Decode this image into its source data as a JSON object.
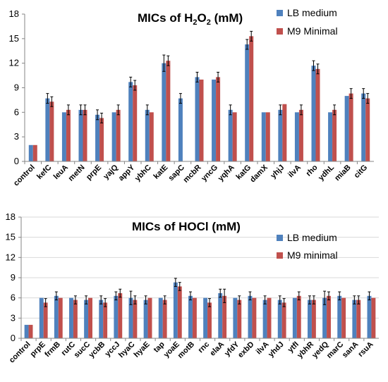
{
  "colors": {
    "lb": "#4f81bd",
    "m9": "#c0504d"
  },
  "chart_data": [
    {
      "type": "bar",
      "title_prefix": "MICs of H",
      "title_sub1": "2",
      "title_mid": "O",
      "title_sub2": "2",
      "title_suffix": " (mM)",
      "ylim": [
        0,
        18
      ],
      "yticks": [
        "0",
        "3",
        "6",
        "9",
        "12",
        "15",
        "18"
      ],
      "grid": false,
      "legend_position": "top-right",
      "categories": [
        "control",
        "kefC",
        "leuA",
        "metN",
        "prpE",
        "yajQ",
        "appY",
        "ybhC",
        "katE",
        "sapC",
        "mcbR",
        "yncG",
        "yqhA",
        "katG",
        "damX",
        "yhjJ",
        "ilvA",
        "rho",
        "ydhL",
        "miaB",
        "citG"
      ],
      "series": [
        {
          "name": "LB medium",
          "values": [
            2,
            7.7,
            6,
            6.3,
            5.7,
            6,
            9.7,
            6.3,
            12,
            7.7,
            10.3,
            10,
            6.3,
            14.3,
            6,
            6.3,
            6,
            11.7,
            6,
            8,
            8.3
          ],
          "errors": [
            0,
            0.6,
            0,
            0.6,
            0.6,
            0,
            0.6,
            0.6,
            1,
            0.6,
            0.6,
            0,
            0.6,
            0.6,
            0,
            0.6,
            0,
            0.6,
            0,
            0,
            0.6
          ]
        },
        {
          "name": "M9 Minimal",
          "values": [
            2,
            7.3,
            6.3,
            6.3,
            5.3,
            6.3,
            9.3,
            6,
            12.3,
            0,
            10,
            10.3,
            6,
            15.3,
            6,
            7,
            6.3,
            11.3,
            6.3,
            8.3,
            7.7
          ],
          "errors": [
            0,
            0.6,
            0.6,
            0.6,
            0.6,
            0.6,
            0.6,
            0,
            0.6,
            0,
            0,
            0.6,
            0,
            0.6,
            0,
            0,
            0.6,
            0.6,
            0.6,
            0.6,
            0.6
          ]
        }
      ]
    },
    {
      "type": "bar",
      "title": "MICs of HOCl (mM)",
      "ylim": [
        0,
        18
      ],
      "yticks": [
        "0",
        "3",
        "6",
        "9",
        "12",
        "15",
        "18"
      ],
      "grid": true,
      "legend_position": "top-right",
      "categories": [
        "control",
        "prpE",
        "frmB",
        "rutC",
        "sucC",
        "ycbB",
        "yccJ",
        "hyaC",
        "hyaE",
        "tap",
        "yoaE",
        "motB",
        "rnc",
        "elaA",
        "yfdY",
        "exbD",
        "ilvA",
        "yhdJ",
        "ytfI",
        "ybhR",
        "yedQ",
        "marC",
        "sanA",
        "rsuA"
      ],
      "series": [
        {
          "name": "LB medium",
          "values": [
            2,
            6,
            6.3,
            6,
            5.7,
            5.7,
            6.3,
            6,
            5.7,
            6,
            8.3,
            6.3,
            6,
            6.7,
            6,
            6.3,
            5.7,
            5.7,
            6,
            5.7,
            6,
            6.3,
            5.7,
            6.3
          ],
          "errors": [
            0,
            0,
            0.6,
            0,
            0.6,
            0.6,
            0.6,
            1,
            0.6,
            0,
            0.6,
            0.6,
            0,
            0.6,
            0,
            0.6,
            0.6,
            0.6,
            0,
            0.6,
            1,
            0.6,
            0.6,
            0.6
          ]
        },
        {
          "name": "M9 minimal",
          "values": [
            2,
            5.3,
            6,
            5.7,
            6,
            5.3,
            6.7,
            5.7,
            6,
            5.7,
            7.7,
            6,
            5.3,
            6.3,
            5.7,
            6,
            6,
            5.3,
            6.3,
            5.7,
            6.3,
            6,
            5.7,
            6
          ],
          "errors": [
            0,
            0.6,
            0,
            0.6,
            0,
            0.6,
            0.6,
            0.6,
            0,
            0.6,
            0.6,
            0,
            0.6,
            1,
            0.6,
            0,
            0,
            0.6,
            0.6,
            0.6,
            0.6,
            0,
            0.6,
            0
          ]
        }
      ]
    }
  ]
}
